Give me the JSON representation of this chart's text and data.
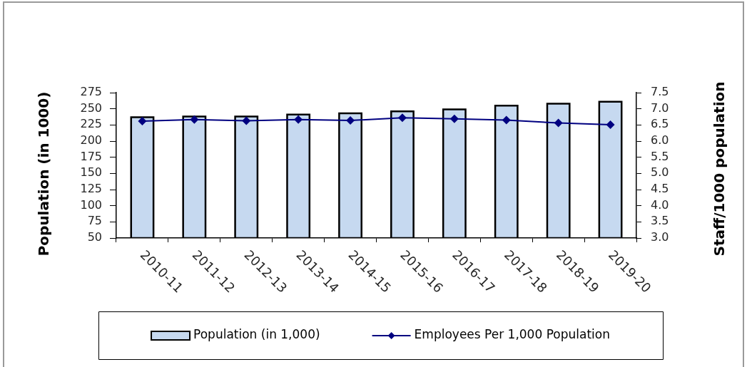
{
  "chart_data": {
    "type": "bar",
    "categories": [
      "2010-11",
      "2011-12",
      "2012-13",
      "2013-14",
      "2014-15",
      "2015-16",
      "2016-17",
      "2017-18",
      "2018-19",
      "2019-20"
    ],
    "series": [
      {
        "name": "Population (in 1,000)",
        "type": "bar",
        "color": "#c6d9f0",
        "values": [
          237,
          238,
          238,
          241,
          243,
          246,
          249,
          255,
          258,
          261
        ]
      },
      {
        "name": "Employees Per 1,000 Population",
        "type": "line",
        "axis": "y2",
        "color": "#000080",
        "marker": "diamond",
        "values": [
          6.62,
          6.67,
          6.63,
          6.67,
          6.64,
          6.72,
          6.69,
          6.65,
          6.56,
          6.51
        ]
      }
    ],
    "ylabel": "Population (in 1000)",
    "y2label": "Staff/1000 population",
    "ylim": [
      50,
      275
    ],
    "yticks": [
      50,
      75,
      100,
      125,
      150,
      175,
      200,
      225,
      250,
      275
    ],
    "y2lim": [
      3,
      7.5
    ],
    "y2ticks": [
      {
        "value": 3,
        "label": "3.0"
      },
      3.5,
      {
        "value": 4,
        "label": "4.0"
      },
      4.5,
      {
        "value": 5,
        "label": "5.0"
      },
      5.5,
      {
        "value": 6,
        "label": "6.0"
      },
      6.5,
      {
        "value": 7,
        "label": "7.0"
      },
      7.5
    ],
    "legend": "bottom"
  }
}
